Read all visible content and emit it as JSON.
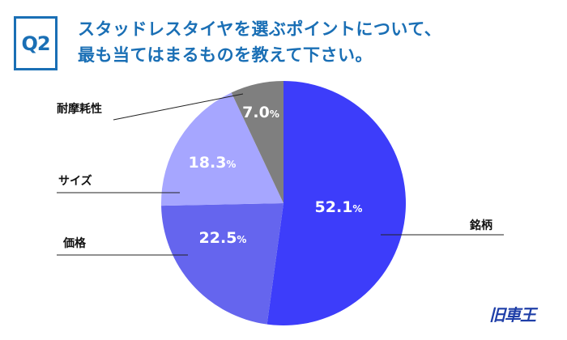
{
  "header": {
    "badge": "Q2",
    "title_line1": "スタッドレスタイヤを選ぶポイントについて、",
    "title_line2": "最も当てはまるものを教えて下さい。"
  },
  "chart_data": {
    "type": "pie",
    "title": "スタッドレスタイヤを選ぶポイントについて、最も当てはまるものを教えて下さい。",
    "unit": "%",
    "start": "top, clockwise",
    "slices": [
      {
        "label": "銘柄",
        "value": 52.1,
        "color": "#3d3dfa"
      },
      {
        "label": "価格",
        "value": 22.5,
        "color": "#6565ee"
      },
      {
        "label": "サイズ",
        "value": 18.3,
        "color": "#a6a6ff"
      },
      {
        "label": "耐摩耗性",
        "value": 7.0,
        "color": "#7f7f7f"
      }
    ]
  },
  "logo": {
    "text": "旧車王"
  }
}
